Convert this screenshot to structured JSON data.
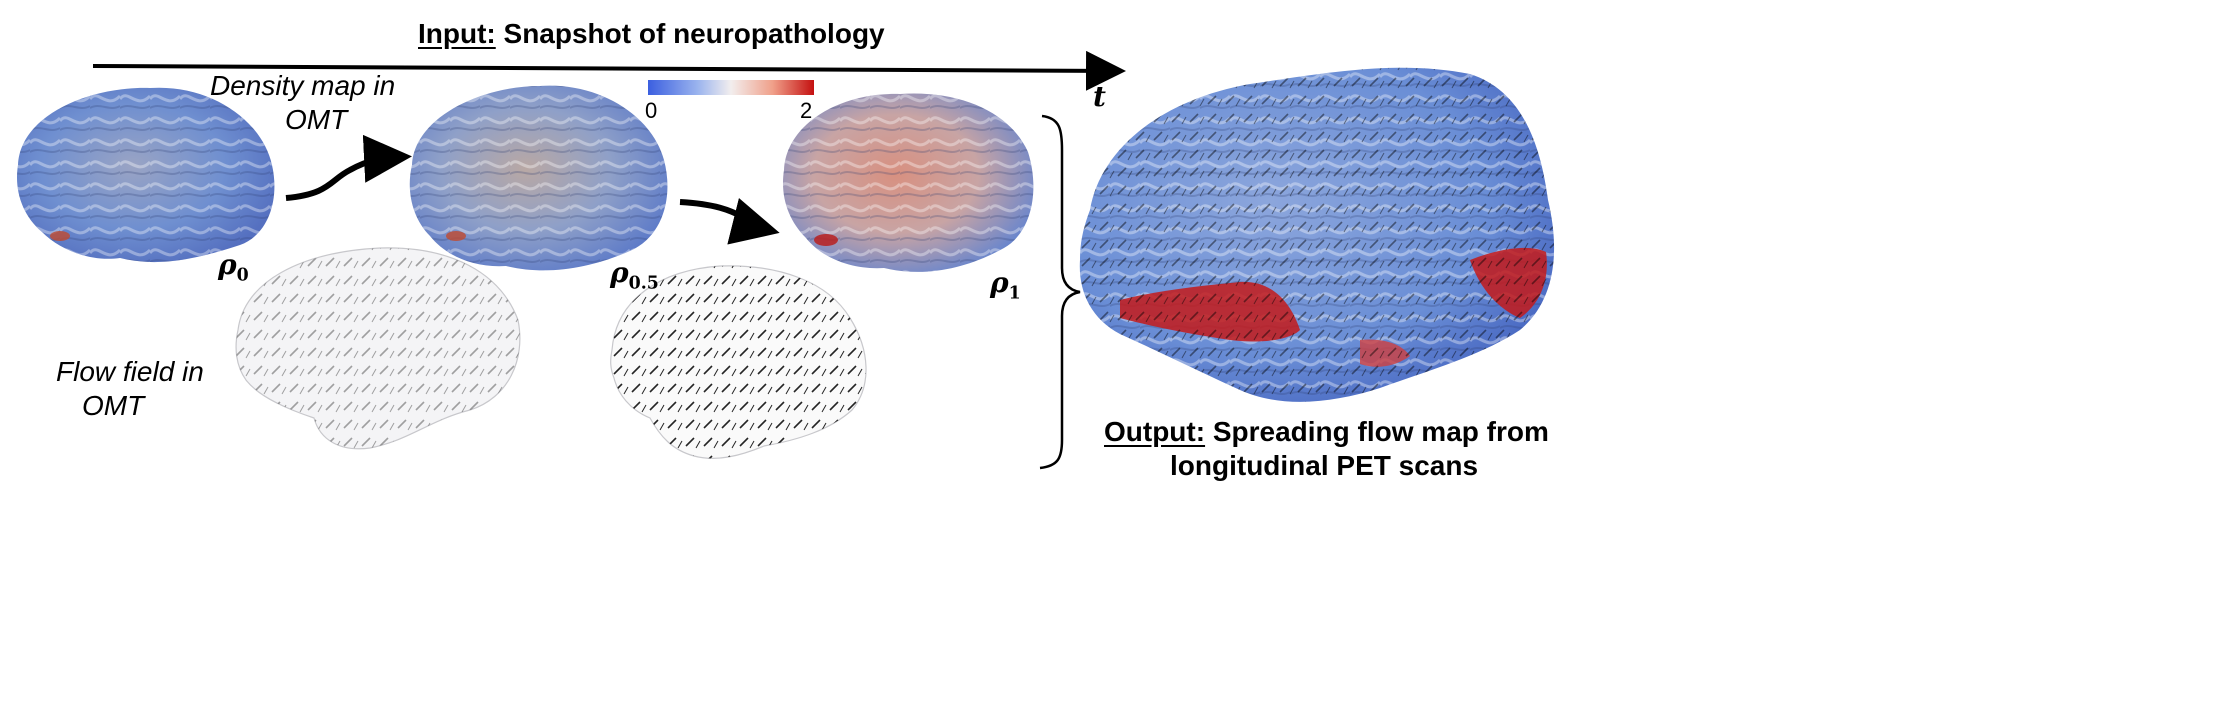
{
  "header": {
    "input_label": "Input:",
    "input_text": " Snapshot of neuropathology",
    "time_symbol": "t"
  },
  "colorbar": {
    "min_label": "0",
    "max_label": "2",
    "colors": [
      "#3b5fe0",
      "#9bb4ee",
      "#f2eeee",
      "#f0a08a",
      "#c41010"
    ]
  },
  "labels": {
    "density_line1": "Density map in",
    "density_line2": "OMT",
    "flow_line1": "Flow field in",
    "flow_line2": "OMT"
  },
  "snapshots": [
    {
      "symbol": "ρ",
      "subscript": "0"
    },
    {
      "symbol": "ρ",
      "subscript": "0.5"
    },
    {
      "symbol": "ρ",
      "subscript": "1"
    }
  ],
  "output": {
    "label": "Output:",
    "line1_rest": " Spreading flow map from",
    "line2": "longitudinal PET scans"
  },
  "colors": {
    "brain_blue": "#6f8fd0",
    "brain_red": "#c42020",
    "brain_gray": "#b8bcc8"
  }
}
